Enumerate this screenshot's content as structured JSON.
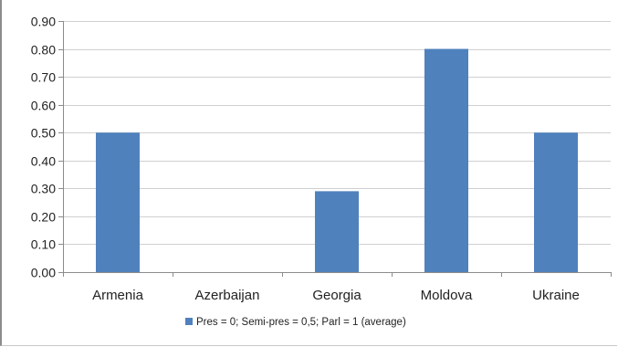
{
  "chart_data": {
    "type": "bar",
    "categories": [
      "Armenia",
      "Azerbaijan",
      "Georgia",
      "Moldova",
      "Ukraine"
    ],
    "series": [
      {
        "name": "Pres = 0; Semi-pres = 0,5; Parl = 1 (average)",
        "values": [
          0.5,
          0.0,
          0.29,
          0.8,
          0.5
        ],
        "color": "#4f81bd"
      }
    ],
    "ylim": [
      0,
      0.9
    ],
    "yticks": [
      "0.00",
      "0.10",
      "0.20",
      "0.30",
      "0.40",
      "0.50",
      "0.60",
      "0.70",
      "0.80",
      "0.90"
    ],
    "grid": true,
    "legend_position": "bottom"
  }
}
